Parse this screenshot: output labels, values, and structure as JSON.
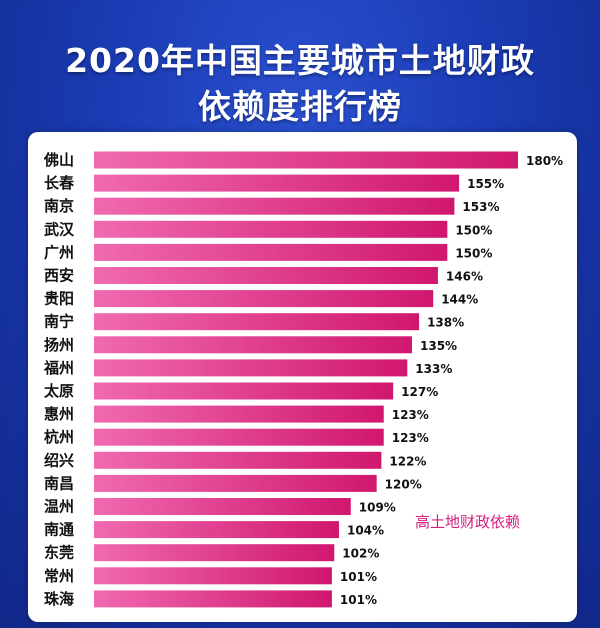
{
  "title_line1": "2020年中国主要城市土地财政",
  "title_line2": "依赖度排行榜",
  "annotation": "高土地财政依赖",
  "colors": {
    "bar": "#d0176e",
    "bar_light": "#f06ab0",
    "annotation": "#d81b7d"
  },
  "chart_data": {
    "type": "bar",
    "orientation": "horizontal",
    "title": "2020年中国主要城市土地财政依赖度排行榜",
    "categories": [
      "佛山",
      "长春",
      "南京",
      "武汉",
      "广州",
      "西安",
      "贵阳",
      "南宁",
      "扬州",
      "福州",
      "太原",
      "惠州",
      "杭州",
      "绍兴",
      "南昌",
      "温州",
      "南通",
      "东莞",
      "常州",
      "珠海"
    ],
    "values": [
      180,
      155,
      153,
      150,
      150,
      146,
      144,
      138,
      135,
      133,
      127,
      123,
      123,
      122,
      120,
      109,
      104,
      102,
      101,
      101
    ],
    "value_labels": [
      "180%",
      "155%",
      "153%",
      "150%",
      "150%",
      "146%",
      "144%",
      "138%",
      "135%",
      "133%",
      "127%",
      "123%",
      "123%",
      "122%",
      "120%",
      "109%",
      "104%",
      "102%",
      "101%",
      "101%"
    ],
    "unit": "%",
    "grid": false
  }
}
